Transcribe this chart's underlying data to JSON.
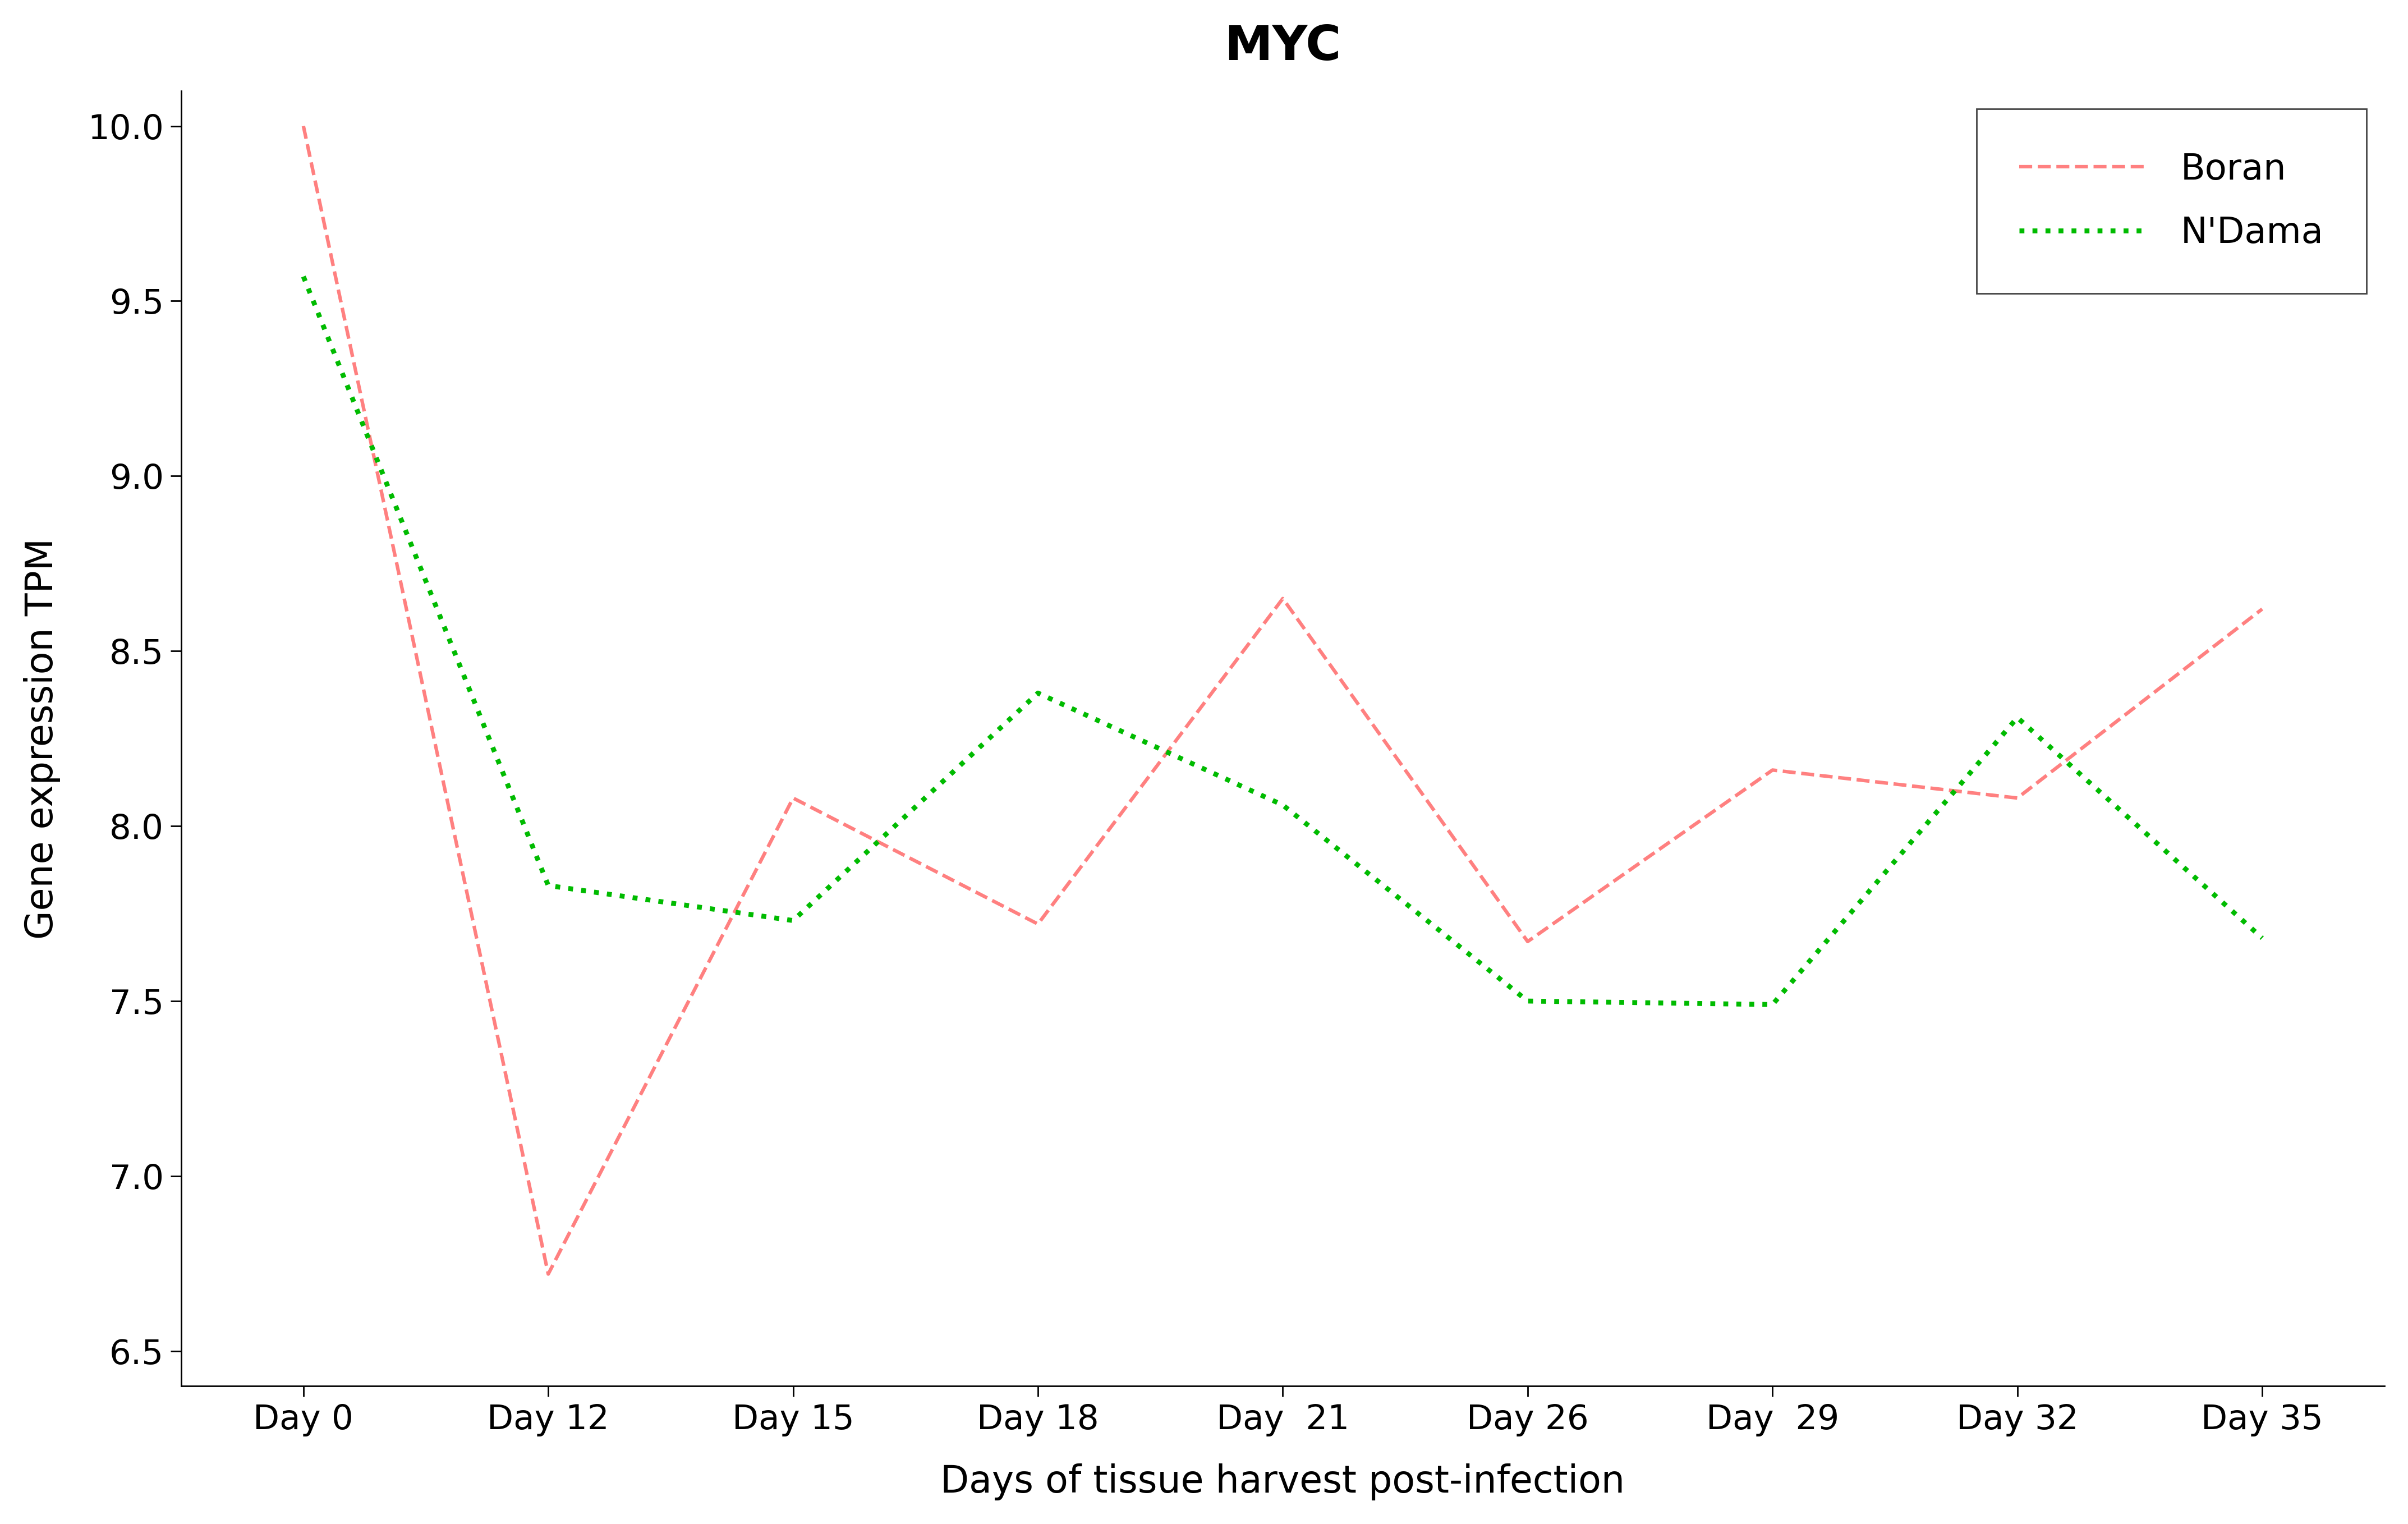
{
  "title": "MYC",
  "xlabel": "Days of tissue harvest post-infection",
  "ylabel": "Gene expression TPM",
  "x_labels": [
    "Day 0",
    "Day 12",
    "Day 15",
    "Day 18",
    "Day  21",
    "Day 26",
    "Day  29",
    "Day 32",
    "Day 35"
  ],
  "boran_values": [
    10.0,
    6.72,
    8.08,
    7.72,
    8.65,
    7.67,
    8.16,
    8.08,
    8.62
  ],
  "ndama_values": [
    9.57,
    7.83,
    7.73,
    8.38,
    8.06,
    7.5,
    7.49,
    8.31,
    7.68
  ],
  "boran_color": "#FF8080",
  "ndama_color": "#00BB00",
  "ylim": [
    6.4,
    10.1
  ],
  "yticks": [
    6.5,
    7.0,
    7.5,
    8.0,
    8.5,
    9.0,
    9.5,
    10.0
  ],
  "ytick_labels": [
    "6.5",
    "7.0",
    "7.5",
    "8.0",
    "8.5",
    "9.0",
    "9.5",
    "10.0"
  ],
  "background_color": "#FFFFFF",
  "title_fontsize": 62,
  "axis_label_fontsize": 48,
  "tick_fontsize": 44,
  "legend_fontsize": 46,
  "line_width": 4.5,
  "legend_linewidth": 4.5
}
